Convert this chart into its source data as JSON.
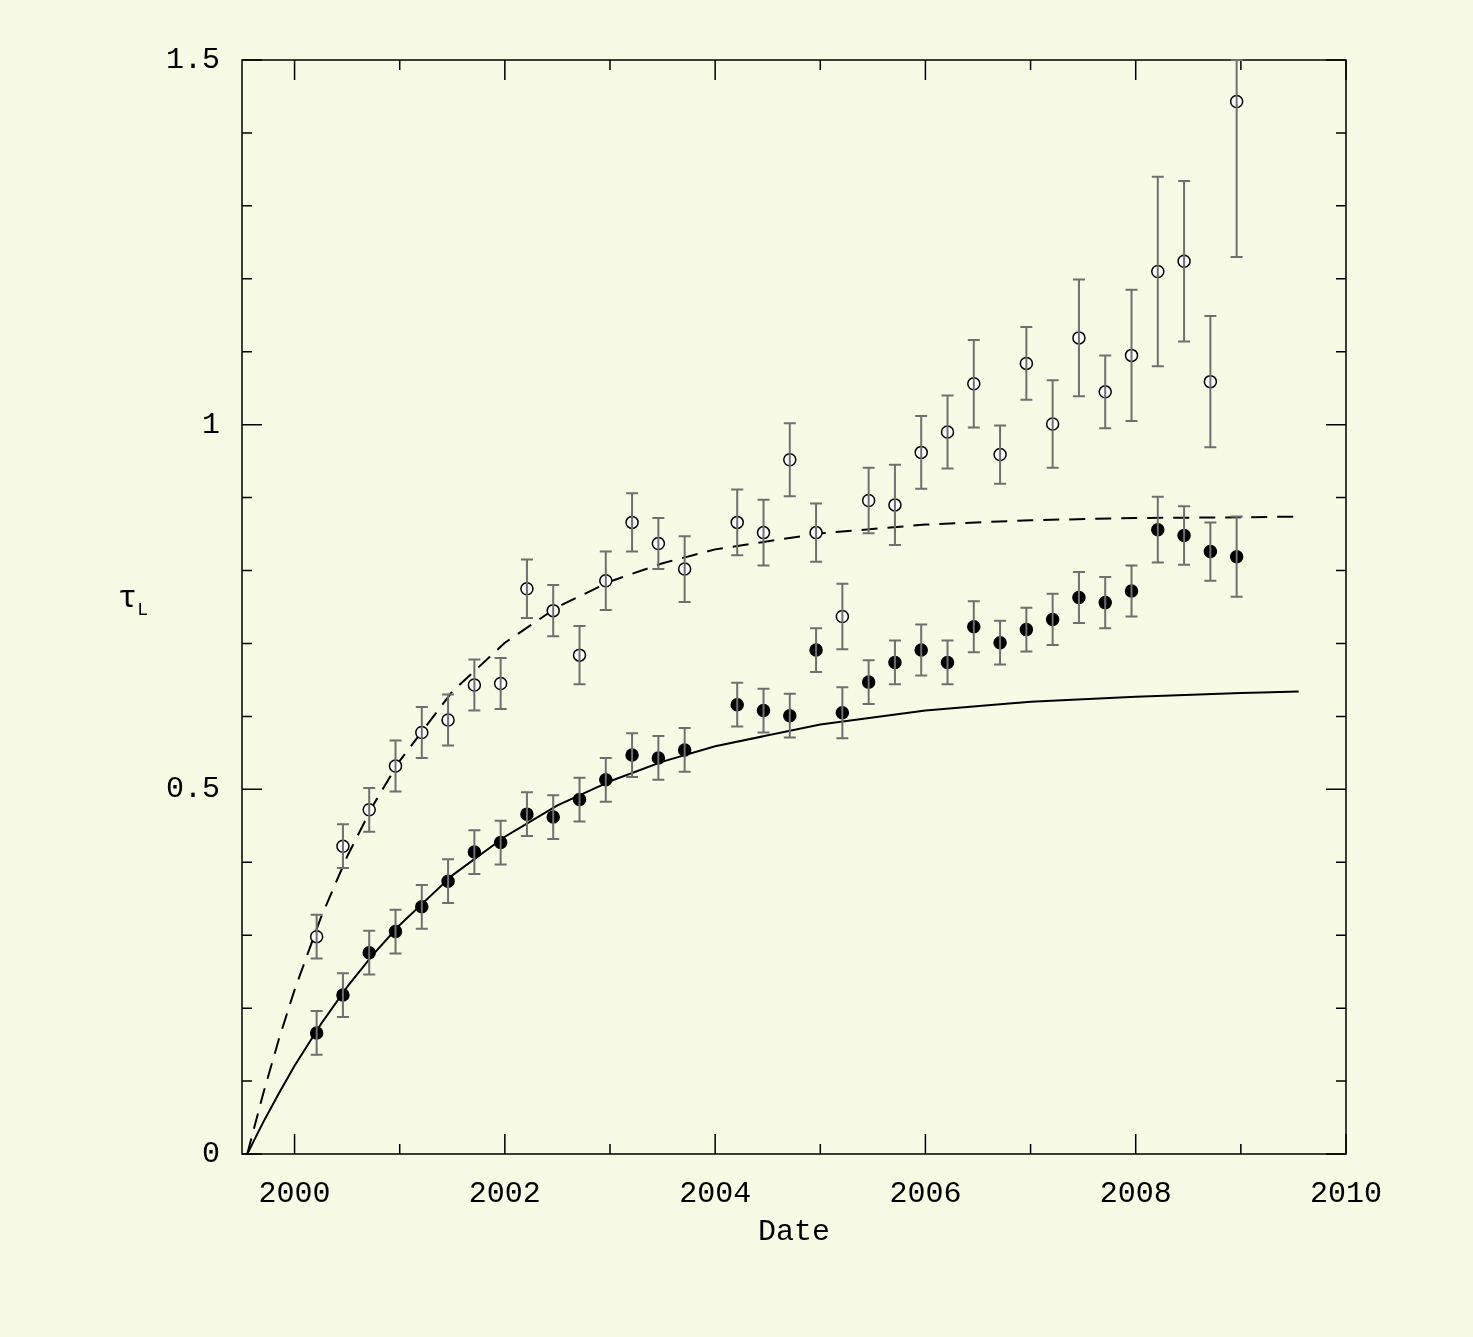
{
  "chart_data": {
    "type": "scatter",
    "xlabel": "Date",
    "ylabel": "τ$_{L}$",
    "xlim": [
      1999.5,
      2010
    ],
    "ylim": [
      0,
      1.5
    ],
    "xticks": [
      2000,
      {
        "value": 2001,
        "label": null
      },
      2002,
      {
        "value": 2003,
        "label": null
      },
      2004,
      {
        "value": 2005,
        "label": null
      },
      2006,
      {
        "value": 2007,
        "label": null
      },
      2008,
      {
        "value": 2009,
        "label": null
      },
      2010
    ],
    "yticks": [
      0,
      {
        "value": 0.1,
        "label": null
      },
      {
        "value": 0.2,
        "label": null
      },
      {
        "value": 0.3,
        "label": null
      },
      {
        "value": 0.4,
        "label": null
      },
      0.5,
      {
        "value": 0.6,
        "label": null
      },
      {
        "value": 0.7,
        "label": null
      },
      {
        "value": 0.8,
        "label": null
      },
      {
        "value": 0.9,
        "label": null
      },
      1,
      {
        "value": 1.1,
        "label": null
      },
      {
        "value": 1.2,
        "label": null
      },
      {
        "value": 1.3,
        "label": null
      },
      {
        "value": 1.4,
        "label": null
      },
      1.5
    ],
    "grid": false,
    "legend": false,
    "marker": "circle",
    "series": [
      {
        "color": "#ffffff",
        "x": [
          2000.21,
          2000.46,
          2000.71,
          2000.96,
          2001.21,
          2001.46,
          2001.71,
          2001.96,
          2002.21,
          2002.46,
          2002.71,
          2002.96,
          2003.21,
          2003.46,
          2003.71,
          2004.21,
          2004.46,
          2004.71,
          2004.96,
          2005.21,
          2005.46,
          2005.71,
          2005.96,
          2006.21,
          2006.46,
          2006.71,
          2006.96,
          2007.21,
          2007.46,
          2007.71,
          2007.96,
          2008.21,
          2008.46,
          2008.71,
          2008.96
        ],
        "values": [
          0.298,
          0.422,
          0.472,
          0.532,
          0.578,
          0.595,
          0.643,
          0.645,
          0.775,
          0.745,
          0.684,
          0.786,
          0.866,
          0.837,
          0.802,
          0.866,
          0.852,
          0.952,
          0.852,
          0.737,
          0.896,
          0.89,
          0.962,
          0.99,
          1.056,
          0.959,
          1.084,
          1.001,
          1.119,
          1.045,
          1.095,
          1.21,
          1.224,
          1.059,
          1.443
        ],
        "errors": [
          0.03,
          0.03,
          0.03,
          0.035,
          0.035,
          0.035,
          0.035,
          0.035,
          0.04,
          0.035,
          0.04,
          0.04,
          0.04,
          0.035,
          0.045,
          0.045,
          0.045,
          0.05,
          0.04,
          0.045,
          0.045,
          0.055,
          0.05,
          0.05,
          0.06,
          0.04,
          0.05,
          0.06,
          0.08,
          0.05,
          0.09,
          0.13,
          0.11,
          0.09,
          [
            1.23,
            1.5
          ]
        ]
      },
      {
        "color": "#000000",
        "x": [
          2000.21,
          2000.46,
          2000.71,
          2000.96,
          2001.21,
          2001.46,
          2001.71,
          2001.96,
          2002.21,
          2002.46,
          2002.71,
          2002.96,
          2003.21,
          2003.46,
          2003.71,
          2004.21,
          2004.46,
          2004.71,
          2004.96,
          2005.21,
          2005.46,
          2005.71,
          2005.96,
          2006.21,
          2006.46,
          2006.71,
          2006.96,
          2007.21,
          2007.46,
          2007.71,
          2007.96,
          2008.21,
          2008.46,
          2008.71,
          2008.96
        ],
        "values": [
          0.166,
          0.218,
          0.276,
          0.305,
          0.339,
          0.374,
          0.414,
          0.427,
          0.466,
          0.462,
          0.486,
          0.513,
          0.547,
          0.543,
          0.554,
          0.616,
          0.608,
          0.601,
          0.691,
          0.605,
          0.647,
          0.674,
          0.691,
          0.674,
          0.723,
          0.701,
          0.719,
          0.733,
          0.763,
          0.756,
          0.772,
          0.856,
          0.848,
          0.826,
          0.819
        ],
        "errors": [
          0.03,
          0.03,
          0.03,
          0.03,
          0.03,
          0.03,
          0.03,
          0.03,
          0.03,
          0.03,
          0.03,
          0.03,
          0.03,
          0.03,
          0.03,
          0.03,
          0.03,
          0.03,
          0.03,
          0.035,
          0.03,
          0.03,
          0.035,
          0.03,
          0.035,
          0.03,
          0.03,
          0.035,
          0.035,
          0.035,
          0.035,
          0.045,
          0.04,
          0.04,
          0.055
        ]
      },
      {
        "type": "line",
        "color": "#000000",
        "marker": "none",
        "line_style": "dashed",
        "x": [
          1999.55,
          1999.7,
          1999.85,
          2000,
          2000.25,
          2000.5,
          2000.75,
          2001,
          2001.5,
          2002,
          2002.5,
          2003,
          2003.5,
          2004,
          2005,
          2006,
          2007,
          2008,
          2009,
          2009.55
        ],
        "values": [
          0,
          0.082,
          0.157,
          0.225,
          0.324,
          0.408,
          0.479,
          0.539,
          0.634,
          0.701,
          0.75,
          0.785,
          0.81,
          0.829,
          0.851,
          0.863,
          0.869,
          0.872,
          0.873,
          0.874
        ]
      },
      {
        "type": "line",
        "color": "#000000",
        "marker": "none",
        "line_style": "solid",
        "x": [
          1999.55,
          1999.7,
          1999.85,
          2000,
          2000.25,
          2000.5,
          2000.75,
          2001,
          2001.5,
          2002,
          2002.5,
          2003,
          2003.5,
          2004,
          2005,
          2006,
          2007,
          2008,
          2009,
          2009.55
        ],
        "values": [
          0,
          0.043,
          0.083,
          0.121,
          0.178,
          0.229,
          0.274,
          0.314,
          0.382,
          0.435,
          0.478,
          0.511,
          0.538,
          0.559,
          0.589,
          0.608,
          0.62,
          0.627,
          0.632,
          0.634
        ]
      }
    ]
  }
}
